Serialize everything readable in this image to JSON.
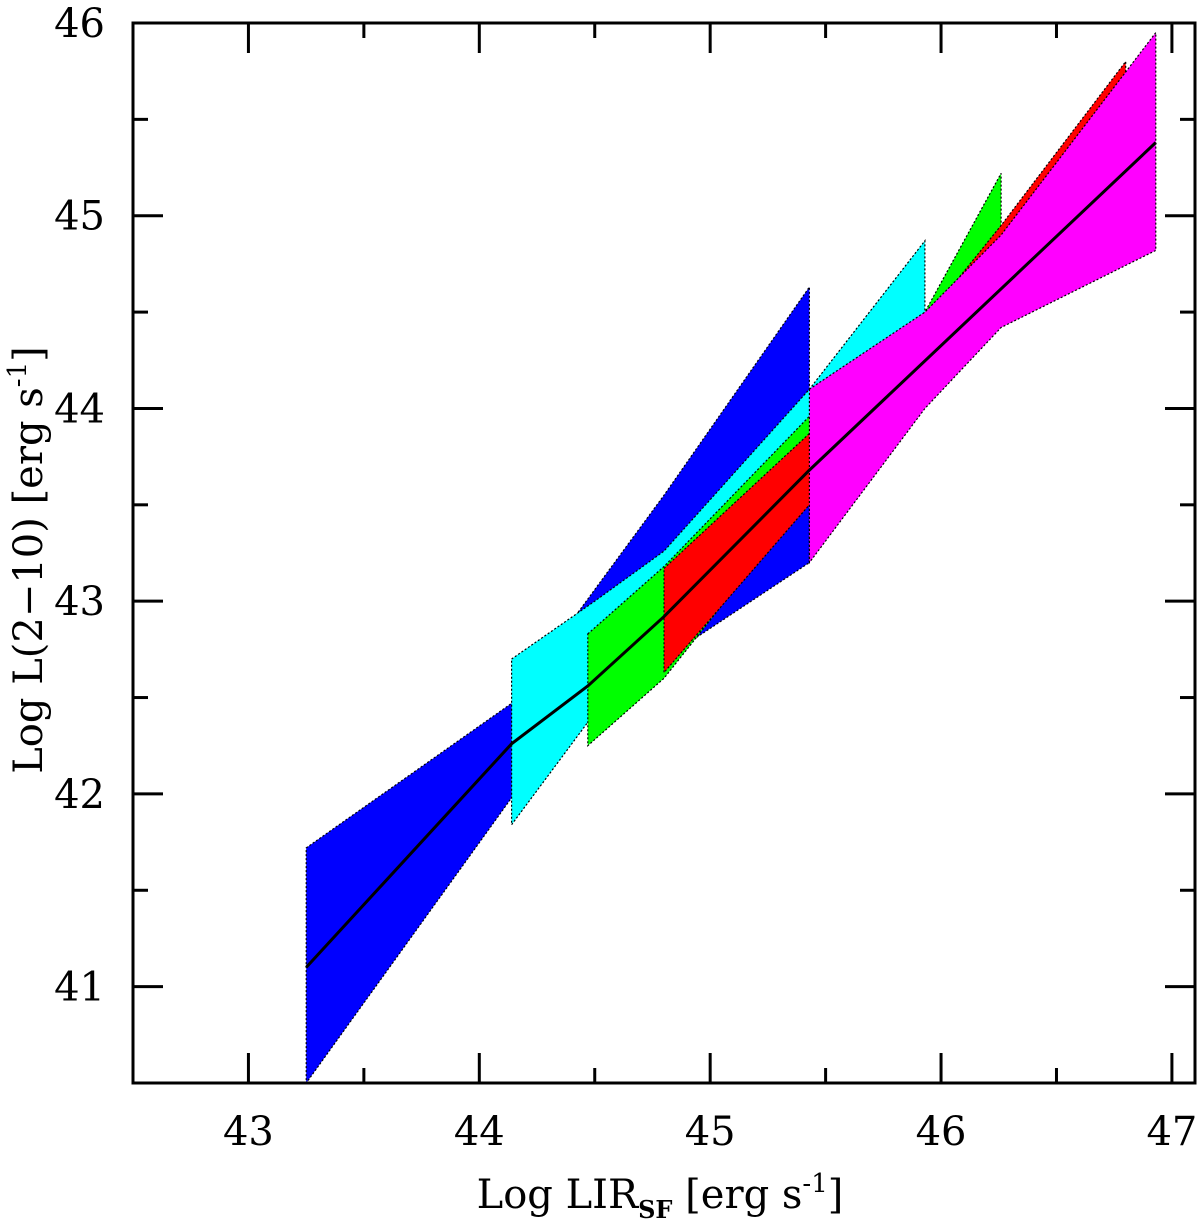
{
  "chart_data": {
    "type": "area",
    "xlabel": {
      "main": "Log LIR",
      "sub": "SF",
      "unit": " [erg s",
      "exp": "-1",
      "close": "]"
    },
    "ylabel": {
      "main": "Log L(2−10) [erg s",
      "exp": "-1",
      "close": "]"
    },
    "xlim": [
      42.5,
      47.1
    ],
    "ylim": [
      40.5,
      46
    ],
    "xticks_major": [
      43,
      44,
      45,
      46,
      47
    ],
    "xticks_minor": [
      42.5,
      43.5,
      44.5,
      45.5,
      46.5
    ],
    "yticks_major": [
      41,
      42,
      43,
      44,
      45,
      46
    ],
    "yticks_minor": [
      40.5,
      41.5,
      42.5,
      43.5,
      44.5,
      45.5
    ],
    "grid": false,
    "bands": [
      {
        "color": "#0000ff",
        "x": [
          43.25,
          44.14,
          44.5,
          44.8,
          45.43
        ],
        "upper": [
          41.72,
          42.47,
          43.06,
          43.55,
          44.63
        ],
        "lower": [
          40.5,
          41.98,
          42.48,
          42.7,
          43.2
        ]
      },
      {
        "color": "#00ffff",
        "x": [
          44.14,
          44.5,
          44.8,
          45.43,
          45.93
        ],
        "upper": [
          42.7,
          43.0,
          43.26,
          44.1,
          44.87
        ],
        "lower": [
          41.84,
          42.42,
          42.8,
          43.56,
          44.18
        ]
      },
      {
        "color": "#00ff00",
        "x": [
          44.47,
          44.8,
          45.43,
          45.93,
          46.26
        ],
        "upper": [
          42.83,
          43.18,
          43.96,
          44.5,
          45.22
        ],
        "lower": [
          42.25,
          42.6,
          43.55,
          44.25,
          44.7
        ]
      },
      {
        "color": "#ff0000",
        "x": [
          44.8,
          45.43,
          45.93,
          46.26,
          46.8
        ],
        "upper": [
          43.17,
          43.87,
          44.46,
          44.95,
          45.8
        ],
        "lower": [
          42.63,
          43.5,
          44.28,
          44.6,
          45.42
        ]
      },
      {
        "color": "#ff00ff",
        "x": [
          45.43,
          45.93,
          46.26,
          46.93
        ],
        "upper": [
          44.1,
          44.5,
          44.9,
          45.95
        ],
        "lower": [
          43.2,
          44.0,
          44.42,
          44.82
        ]
      }
    ],
    "fit_line": [
      {
        "x": 43.25,
        "y": 41.1
      },
      {
        "x": 44.14,
        "y": 42.26
      },
      {
        "x": 44.47,
        "y": 42.56
      },
      {
        "x": 44.8,
        "y": 42.92
      },
      {
        "x": 45.43,
        "y": 43.68
      },
      {
        "x": 46.93,
        "y": 45.38
      }
    ],
    "line_color": "#000000"
  }
}
